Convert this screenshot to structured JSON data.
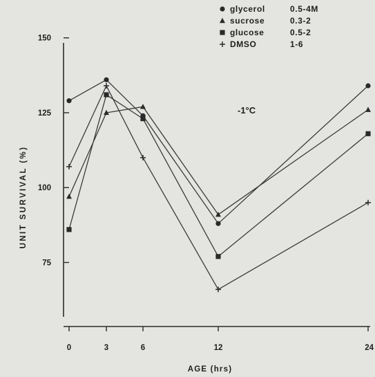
{
  "chart_data": {
    "type": "line",
    "title": "",
    "xlabel": "AGE (hrs)",
    "ylabel": "UNIT SURVIVAL (%)",
    "annotation": "-1°C",
    "x": [
      0,
      3,
      6,
      12,
      24
    ],
    "x_ticks": [
      "0",
      "3",
      "6",
      "12",
      "24"
    ],
    "x_scale": "categorical",
    "y_ticks": [
      75,
      100,
      125,
      150
    ],
    "ylim": [
      57,
      150
    ],
    "grid": false,
    "legend_position": "top-right",
    "series": [
      {
        "name": "glycerol",
        "range": "0.5-4M",
        "marker": "circle",
        "values": [
          129,
          136,
          124,
          88,
          134
        ]
      },
      {
        "name": "sucrose",
        "range": "0.3-2",
        "marker": "triangle",
        "values": [
          97,
          125,
          127,
          91,
          126
        ]
      },
      {
        "name": "glucose",
        "range": "0.5-2",
        "marker": "square",
        "values": [
          86,
          131,
          123,
          77,
          118
        ]
      },
      {
        "name": "DMSO",
        "range": "1-6",
        "marker": "plus",
        "values": [
          107,
          134,
          110,
          66,
          95
        ]
      }
    ]
  }
}
